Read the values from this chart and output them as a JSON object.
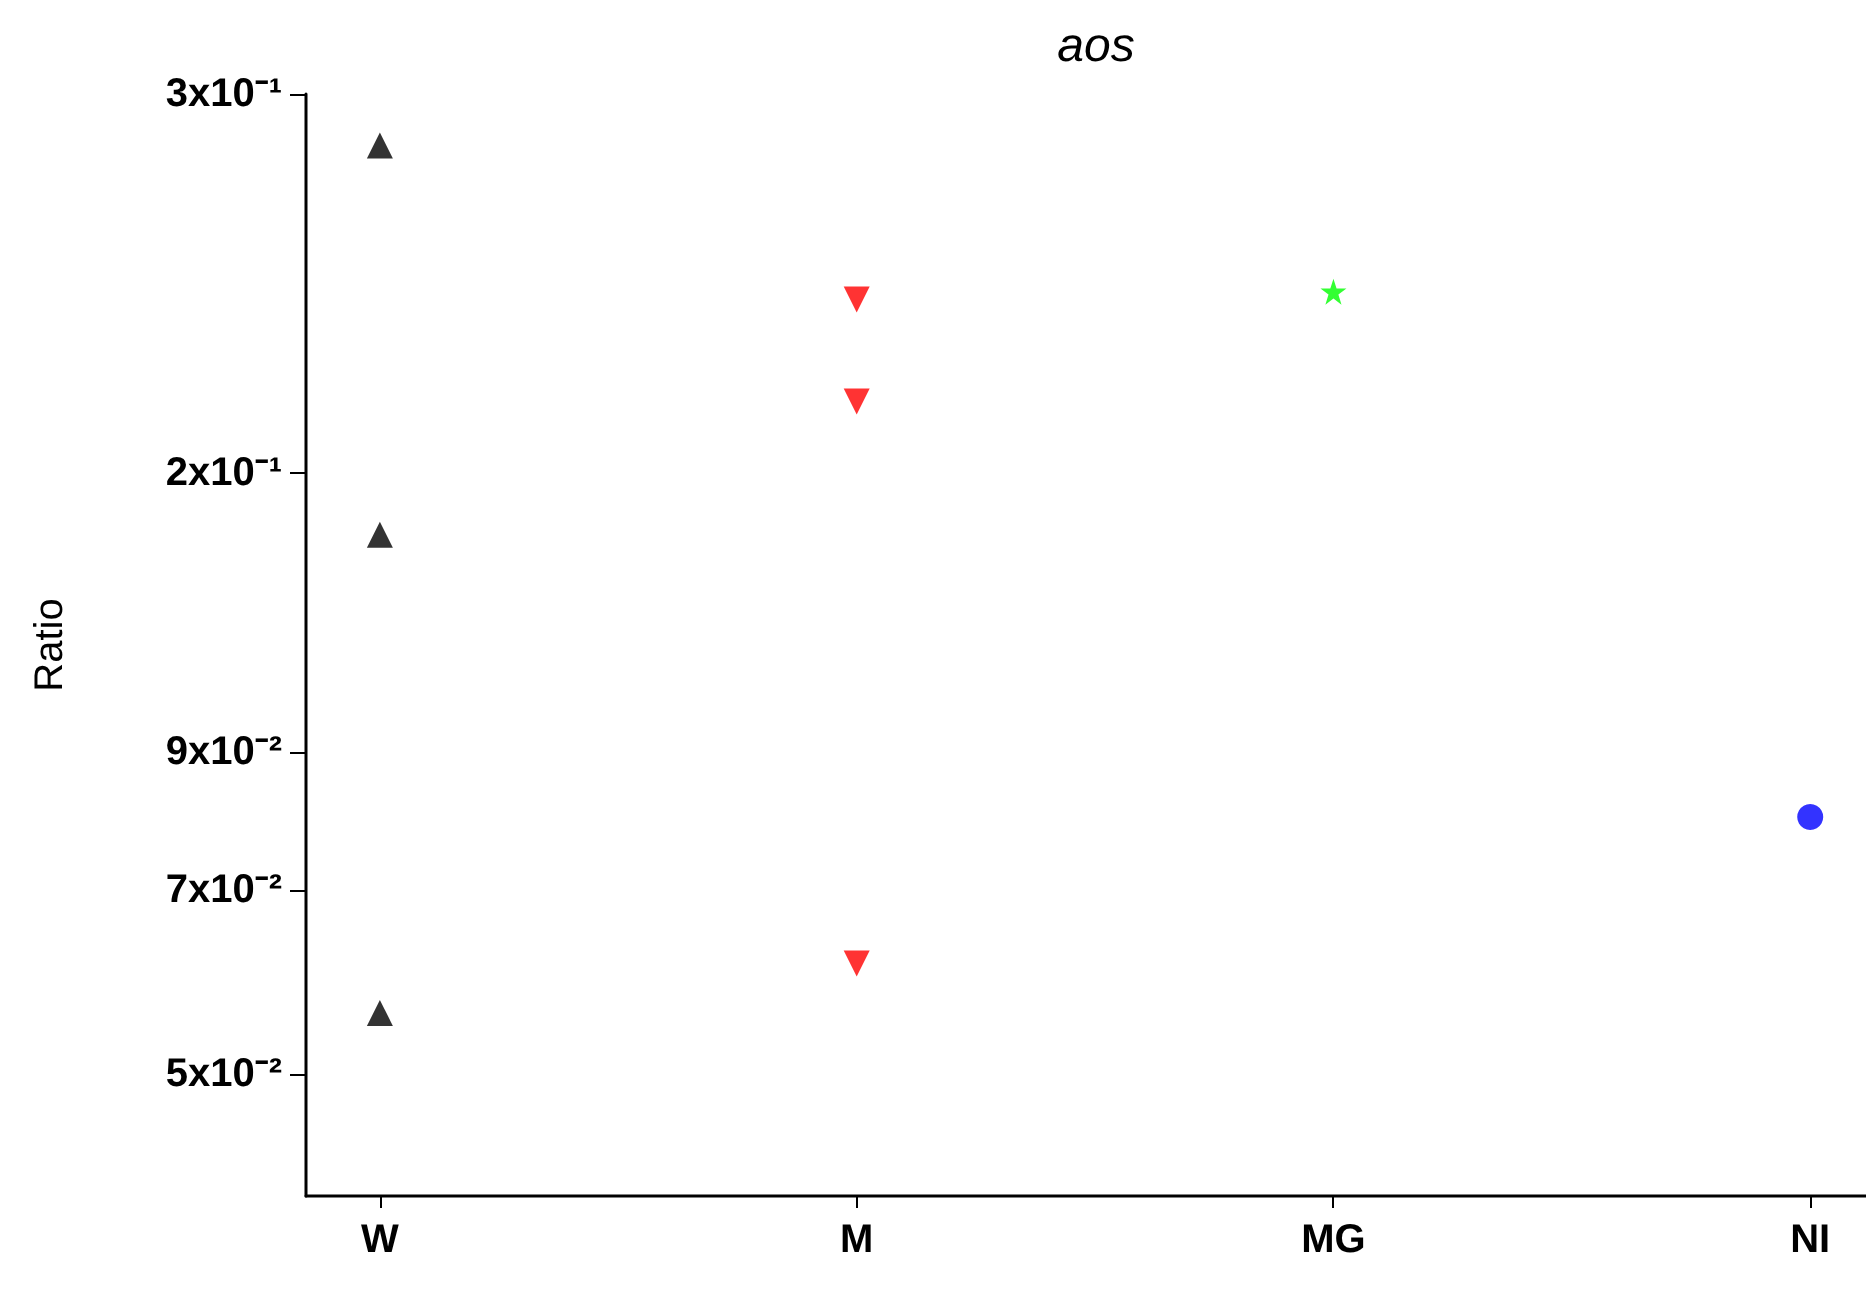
{
  "chart_data": {
    "type": "scatter",
    "title": "aos",
    "ylabel": "Ratio",
    "categories": [
      "W",
      "M",
      "MG",
      "NI"
    ],
    "log": true,
    "ylim": [
      0.04,
      0.3
    ],
    "yticks": [
      {
        "value": 0.05,
        "label": "5x10⁻²"
      },
      {
        "value": 0.07,
        "label": "7x10⁻²"
      },
      {
        "value": 0.09,
        "label": "9x10⁻²"
      },
      {
        "value": 0.15,
        "label": "2x10⁻¹"
      },
      {
        "value": 0.3,
        "label": "3x10⁻¹"
      }
    ],
    "grid": false,
    "series": [
      {
        "color": "#000000",
        "marker": "triangle",
        "x": [
          "W",
          "W",
          "W"
        ],
        "values": [
          0.273,
          0.134,
          0.0559
        ]
      },
      {
        "color": "#ff0000",
        "marker": "triangle-down",
        "x": [
          "M",
          "M",
          "M"
        ],
        "values": [
          0.206,
          0.171,
          0.0612
        ]
      },
      {
        "color": "#00ff00",
        "marker": "star",
        "x": [
          "MG"
        ],
        "values": [
          0.209
        ]
      },
      {
        "color": "#0000ff",
        "marker": "circle",
        "x": [
          "NI"
        ],
        "values": [
          0.08
        ]
      }
    ]
  }
}
